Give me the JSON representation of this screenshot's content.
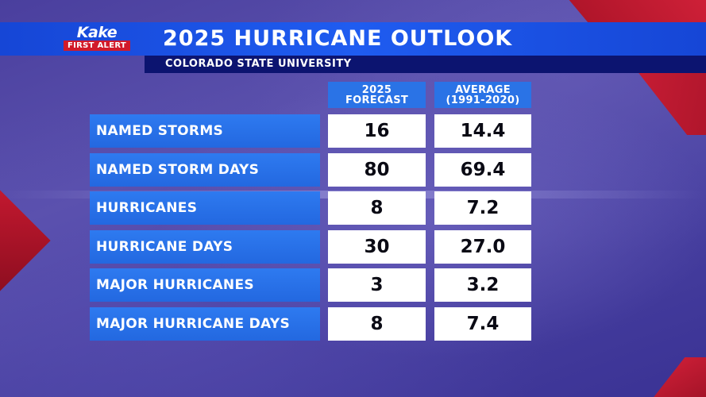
{
  "branding": {
    "logo_top": "Kake",
    "logo_bottom": "FIRST ALERT"
  },
  "header": {
    "title": "2025 HURRICANE OUTLOOK",
    "subtitle": "COLORADO STATE UNIVERSITY"
  },
  "table": {
    "columns": [
      {
        "line1": "2025",
        "line2": "FORECAST"
      },
      {
        "line1": "AVERAGE",
        "line2": "(1991-2020)"
      }
    ],
    "rows": [
      {
        "label": "NAMED STORMS",
        "forecast": "16",
        "average": "14.4"
      },
      {
        "label": "NAMED STORM DAYS",
        "forecast": "80",
        "average": "69.4"
      },
      {
        "label": "HURRICANES",
        "forecast": "8",
        "average": "7.2"
      },
      {
        "label": "HURRICANE DAYS",
        "forecast": "30",
        "average": "27.0"
      },
      {
        "label": "MAJOR HURRICANES",
        "forecast": "3",
        "average": "3.2"
      },
      {
        "label": "MAJOR HURRICANE DAYS",
        "forecast": "8",
        "average": "7.4"
      }
    ]
  },
  "colors": {
    "header_blue": "#1f5cf0",
    "subtitle_navy": "#0c1470",
    "label_blue": "#2a73e6",
    "accent_red": "#d11a2a"
  }
}
